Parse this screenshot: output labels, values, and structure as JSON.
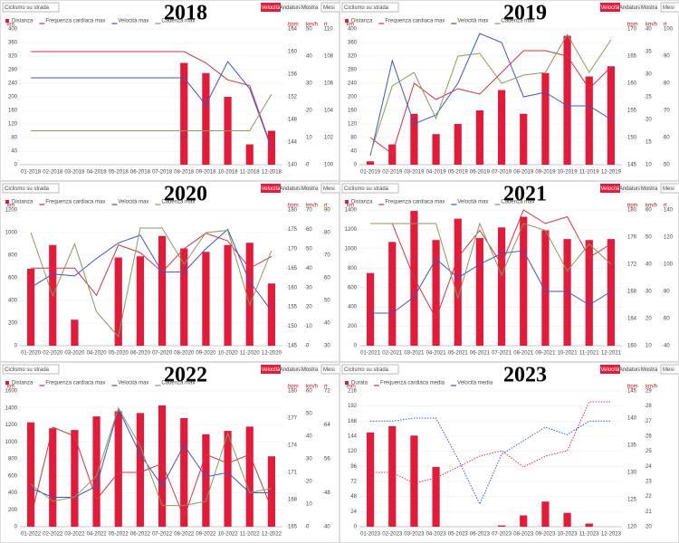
{
  "chart_data": [
    {
      "type": "bar_line",
      "title": "2018",
      "dropdown": "Ciclismo su strada",
      "tabs": [
        "Velocità",
        "Andatura",
        "Mostra"
      ],
      "period": "Mesi",
      "categories": [
        "01-2018",
        "02-2018",
        "03-2018",
        "04-2018",
        "05-2018",
        "06-2018",
        "07-2018",
        "08-2018",
        "09-2018",
        "10-2018",
        "11-2018",
        "12-2018"
      ],
      "ylabel": "km",
      "ylim": [
        0,
        400
      ],
      "yticks": [
        0,
        40,
        80,
        120,
        160,
        200,
        240,
        280,
        320,
        360,
        400
      ],
      "y2label": "bpm",
      "y2lim": [
        140,
        164
      ],
      "y2ticks": [
        140,
        144,
        148,
        152,
        156,
        160,
        164
      ],
      "y3label": "km/h",
      "y3lim": [
        0,
        50
      ],
      "y3ticks": [
        0,
        10,
        20,
        30,
        40,
        50
      ],
      "y4label": "rt",
      "y4lim": [
        100,
        110
      ],
      "y4ticks": [
        100,
        102,
        104,
        106,
        108,
        110
      ],
      "series": [
        {
          "name": "Distanza",
          "kind": "bar",
          "axis": "y",
          "color": "#e31b3a",
          "values": [
            null,
            null,
            null,
            null,
            null,
            null,
            null,
            300,
            270,
            200,
            60,
            100
          ]
        },
        {
          "name": "Frequenza cardiaca max",
          "kind": "line",
          "axis": "y2",
          "color": "#d9303f",
          "values": [
            160,
            160,
            160,
            160,
            160,
            160,
            160,
            160,
            158,
            155,
            154,
            143
          ]
        },
        {
          "name": "Velocità max",
          "kind": "line",
          "axis": "y3",
          "color": "#3b55c8",
          "values": [
            32,
            32,
            32,
            32,
            32,
            32,
            32,
            32,
            22,
            38,
            28,
            6
          ]
        },
        {
          "name": "Cadenza max",
          "kind": "line",
          "axis": "y4",
          "color": "#8a9a5b",
          "values": [
            102.5,
            102.5,
            102.5,
            102.5,
            102.5,
            102.5,
            102.5,
            102.5,
            102.5,
            102.5,
            102.5,
            105.2
          ]
        }
      ]
    },
    {
      "type": "bar_line",
      "title": "2019",
      "dropdown": "Ciclismo su strada",
      "tabs": [
        "Velocità",
        "Andatura",
        "Mostra"
      ],
      "period": "Mesi",
      "categories": [
        "01-2019",
        "02-2019",
        "03-2019",
        "04-2019",
        "05-2019",
        "06-2019",
        "07-2019",
        "08-2019",
        "09-2019",
        "10-2019",
        "11-2019",
        "12-2019"
      ],
      "ylabel": "km",
      "ylim": [
        0,
        400
      ],
      "yticks": [
        0,
        40,
        80,
        120,
        160,
        200,
        240,
        280,
        320,
        360,
        400
      ],
      "y2label": "bpm",
      "y2lim": [
        145,
        170
      ],
      "y2ticks": [
        145,
        150,
        155,
        160,
        165,
        170
      ],
      "y3label": "km/h",
      "y3lim": [
        10,
        40
      ],
      "y3ticks": [
        10,
        15,
        20,
        25,
        30,
        35,
        40
      ],
      "y4label": "rt",
      "y4lim": [
        50,
        100
      ],
      "y4ticks": [
        50,
        60,
        70,
        80,
        90,
        100
      ],
      "series": [
        {
          "name": "Distanza",
          "kind": "bar",
          "axis": "y",
          "color": "#e31b3a",
          "values": [
            10,
            60,
            150,
            90,
            120,
            160,
            220,
            150,
            270,
            380,
            260,
            290
          ]
        },
        {
          "name": "Frequenza cardiaca max",
          "kind": "line",
          "axis": "y2",
          "color": "#d9303f",
          "values": [
            150,
            147,
            160,
            157,
            159,
            158,
            162,
            166,
            166,
            165,
            159,
            163
          ]
        },
        {
          "name": "Velocità max",
          "kind": "line",
          "axis": "y3",
          "color": "#3b55c8",
          "values": [
            12,
            33,
            19,
            21,
            28,
            39,
            37,
            25,
            26,
            23,
            23,
            20
          ]
        },
        {
          "name": "Cadenza max",
          "kind": "line",
          "axis": "y4",
          "color": "#8a9a5b",
          "values": [
            54,
            79,
            84,
            67,
            90,
            91,
            80,
            83,
            84,
            98,
            84,
            96
          ]
        }
      ]
    },
    {
      "type": "bar_line",
      "title": "2020",
      "dropdown": "Ciclismo su strada",
      "tabs": [
        "Velocità",
        "Andatura",
        "Mostra"
      ],
      "period": "Mesi",
      "categories": [
        "01-2020",
        "02-2020",
        "03-2020",
        "04-2020",
        "05-2020",
        "06-2020",
        "07-2020",
        "08-2020",
        "09-2020",
        "10-2020",
        "11-2020",
        "12-2020"
      ],
      "ylabel": "km",
      "ylim": [
        0,
        1200
      ],
      "yticks": [
        0,
        200,
        400,
        600,
        800,
        1000,
        1200
      ],
      "y2label": "bpm",
      "y2lim": [
        145,
        180
      ],
      "y2ticks": [
        145,
        150,
        155,
        160,
        165,
        170,
        175,
        180
      ],
      "y3label": "km/h",
      "y3lim": [
        0,
        70
      ],
      "y3ticks": [
        0,
        10,
        20,
        30,
        40,
        50,
        60,
        70
      ],
      "y4label": "rt",
      "y4lim": [
        30,
        90
      ],
      "y4ticks": [
        30,
        40,
        50,
        60,
        70,
        80,
        90
      ],
      "series": [
        {
          "name": "Distanza",
          "kind": "bar",
          "axis": "y",
          "color": "#e31b3a",
          "values": [
            680,
            890,
            230,
            null,
            780,
            790,
            970,
            860,
            830,
            890,
            910,
            550
          ]
        },
        {
          "name": "Frequenza cardiaca max",
          "kind": "line",
          "axis": "y2",
          "color": "#d9303f",
          "values": [
            165,
            165,
            165,
            158,
            171,
            169,
            164,
            170,
            174,
            172,
            165,
            168
          ]
        },
        {
          "name": "Velocità max",
          "kind": "line",
          "axis": "y3",
          "color": "#3b55c8",
          "values": [
            30,
            37,
            36,
            45,
            53,
            57,
            38,
            38,
            50,
            60,
            33,
            18
          ]
        },
        {
          "name": "Cadenza max",
          "kind": "line",
          "axis": "y4",
          "color": "#8a9a5b",
          "values": [
            80,
            52,
            75,
            45,
            34,
            82,
            82,
            66,
            80,
            81,
            48,
            72
          ]
        }
      ]
    },
    {
      "type": "bar_line",
      "title": "2021",
      "dropdown": "Ciclismo su strada",
      "tabs": [
        "Velocità",
        "Andatura",
        "Mostra"
      ],
      "period": "Mesi",
      "categories": [
        "01-2021",
        "02-2021",
        "03-2021",
        "04-2021",
        "05-2021",
        "06-2021",
        "07-2021",
        "08-2021",
        "09-2021",
        "10-2021",
        "11-2021",
        "12-2021"
      ],
      "ylabel": "km",
      "ylim": [
        0,
        1400
      ],
      "yticks": [
        0,
        200,
        400,
        600,
        800,
        1000,
        1200,
        1400
      ],
      "y2label": "bpm",
      "y2lim": [
        160,
        180
      ],
      "y2ticks": [
        160,
        164,
        168,
        172,
        176,
        180
      ],
      "y3label": "km/h",
      "y3lim": [
        10,
        60
      ],
      "y3ticks": [
        10,
        20,
        30,
        40,
        50,
        60
      ],
      "y4label": "rt",
      "y4lim": [
        40,
        140
      ],
      "y4ticks": [
        40,
        60,
        80,
        100,
        120,
        140
      ],
      "series": [
        {
          "name": "Distanza",
          "kind": "bar",
          "axis": "y",
          "color": "#e31b3a",
          "values": [
            750,
            1070,
            1390,
            1090,
            1310,
            1110,
            1220,
            1330,
            1190,
            1100,
            1090,
            1100
          ]
        },
        {
          "name": "Frequenza cardiaca max",
          "kind": "line",
          "axis": "y2",
          "color": "#d9303f",
          "values": [
            178,
            178,
            170,
            164,
            173,
            177,
            172,
            180,
            178,
            179,
            173,
            175
          ]
        },
        {
          "name": "Velocità max",
          "kind": "line",
          "axis": "y3",
          "color": "#3b55c8",
          "values": [
            22,
            22,
            28,
            42,
            35,
            40,
            44,
            45,
            30,
            30,
            25,
            30
          ]
        },
        {
          "name": "Cadenza max",
          "kind": "line",
          "axis": "y4",
          "color": "#8a9a5b",
          "values": [
            130,
            130,
            130,
            130,
            75,
            130,
            92,
            130,
            125,
            95,
            115,
            100
          ]
        }
      ]
    },
    {
      "type": "bar_line",
      "title": "2022",
      "dropdown": "Ciclismo su strada",
      "tabs": [
        "Velocità",
        "Andatura",
        "Mostra"
      ],
      "period": "Mesi",
      "categories": [
        "01-2022",
        "02-2022",
        "03-2022",
        "04-2022",
        "05-2022",
        "06-2022",
        "07-2022",
        "08-2022",
        "09-2022",
        "10-2022",
        "11-2022",
        "12-2022"
      ],
      "ylabel": "km",
      "ylim": [
        0,
        1600
      ],
      "yticks": [
        0,
        200,
        400,
        600,
        800,
        1000,
        1200,
        1400,
        1600
      ],
      "y2label": "bpm",
      "y2lim": [
        165,
        180
      ],
      "y2ticks": [
        165,
        168,
        171,
        174,
        177,
        180
      ],
      "y3label": "km/h",
      "y3lim": [
        0,
        60
      ],
      "y3ticks": [
        0,
        10,
        20,
        30,
        40,
        50,
        60
      ],
      "y4label": "rt",
      "y4lim": [
        40,
        72
      ],
      "y4ticks": [
        40,
        48,
        56,
        64,
        72
      ],
      "series": [
        {
          "name": "Distanza",
          "kind": "bar",
          "axis": "y",
          "color": "#e31b3a",
          "values": [
            1230,
            1160,
            1140,
            1300,
            1360,
            1340,
            1430,
            1280,
            1090,
            1130,
            1180,
            830
          ]
        },
        {
          "name": "Frequenza cardiaca max",
          "kind": "line",
          "axis": "y2",
          "color": "#d9303f",
          "values": [
            166,
            176,
            175,
            168,
            171,
            171,
            172,
            166,
            173,
            172,
            173,
            167
          ]
        },
        {
          "name": "Velocità max",
          "kind": "line",
          "axis": "y3",
          "color": "#3b55c8",
          "values": [
            17,
            13,
            13,
            18,
            52,
            32,
            18,
            36,
            22,
            24,
            15,
            15
          ]
        },
        {
          "name": "Cadenza max",
          "kind": "line",
          "axis": "y4",
          "color": "#8a9a5b",
          "values": [
            50,
            46,
            47,
            52,
            68,
            59,
            45,
            45,
            46,
            62,
            48,
            49
          ]
        }
      ]
    },
    {
      "type": "bar_line",
      "title": "2023",
      "dropdown": "Ciclismo su strada",
      "tabs": [
        "Velocità",
        "Andatura",
        "Mostra"
      ],
      "period": "Mesi",
      "categories": [
        "01-2023",
        "02-2023",
        "03-2023",
        "04-2023",
        "05-2023",
        "06-2023",
        "07-2023",
        "08-2023",
        "09-2023",
        "10-2023",
        "11-2023",
        "12-2023"
      ],
      "ylabel": "min",
      "ylim": [
        0,
        216
      ],
      "yticks": [
        0,
        24,
        48,
        72,
        96,
        120,
        144,
        168,
        192,
        216
      ],
      "y2label": "bpm",
      "y2lim": [
        120,
        145
      ],
      "y2ticks": [
        120,
        125,
        130,
        135,
        140,
        145
      ],
      "y3label": "km/h",
      "y3lim": [
        20,
        29
      ],
      "y3ticks": [
        20,
        21,
        22,
        23,
        24,
        25,
        26,
        27,
        28,
        29
      ],
      "series": [
        {
          "name": "Durata",
          "kind": "bar",
          "axis": "y",
          "color": "#e31b3a",
          "values": [
            150,
            160,
            145,
            95,
            null,
            null,
            2,
            18,
            40,
            22,
            5,
            null
          ]
        },
        {
          "name": "Frequenza cardiaca media",
          "kind": "line",
          "axis": "y2",
          "color": "#d9303f",
          "dash": true,
          "values": [
            130,
            130,
            128,
            129,
            131,
            133,
            134,
            131,
            133,
            134,
            143,
            143
          ]
        },
        {
          "name": "Velocità media",
          "kind": "line",
          "axis": "y3",
          "color": "#3b55c8",
          "dash": true,
          "values": [
            27,
            27,
            27.2,
            27.2,
            24.5,
            21.5,
            24.8,
            25.7,
            26.6,
            26.1,
            27,
            27
          ]
        }
      ]
    }
  ]
}
